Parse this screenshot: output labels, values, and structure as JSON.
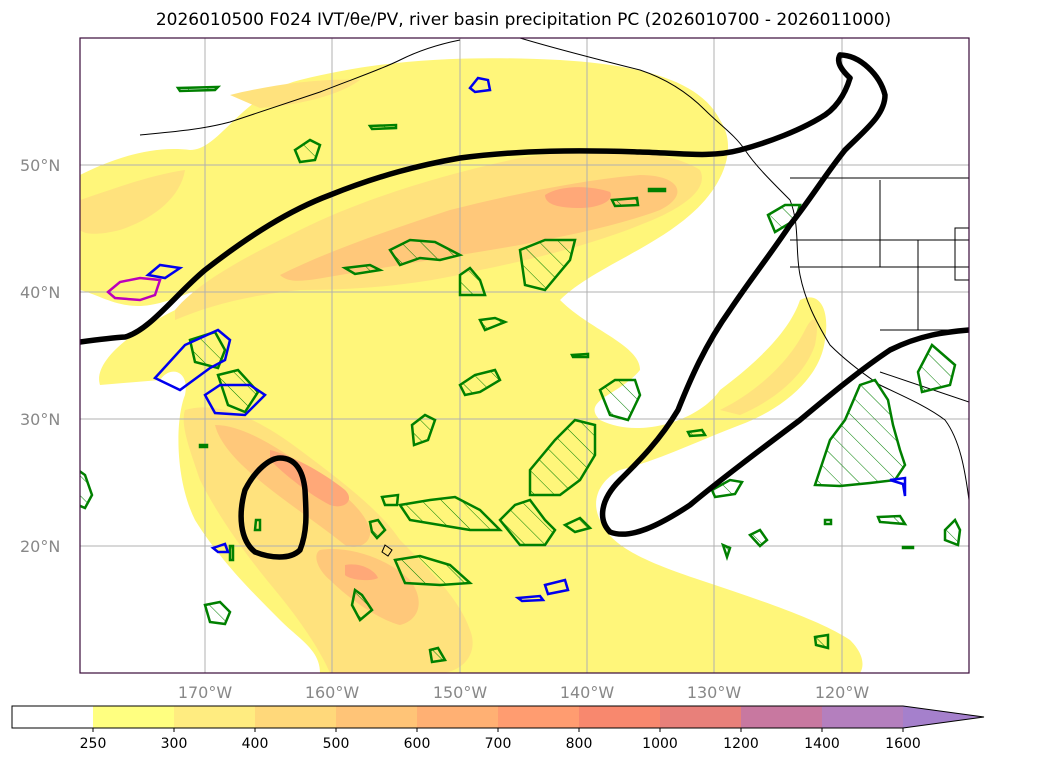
{
  "title": "2026010500 F024 IVT/θe/PV, river basin precipitation PC (2026010700 - 2026011000)",
  "lat_labels": [
    "50°N",
    "40°N",
    "30°N",
    "20°N"
  ],
  "lon_labels": [
    "170°W",
    "160°W",
    "150°W",
    "140°W",
    "130°W",
    "120°W"
  ],
  "colorbar": {
    "ticks": [
      "250",
      "300",
      "400",
      "500",
      "600",
      "700",
      "800",
      "1000",
      "1200",
      "1400",
      "1600"
    ],
    "colors": [
      "#ffffff",
      "#ffff80",
      "#ffec80",
      "#ffd87a",
      "#ffc477",
      "#ffb073",
      "#ff9c70",
      "#f8886e",
      "#e8807a",
      "#c878a0",
      "#b47fbe",
      "#a580cc"
    ]
  },
  "colors": {
    "ivt_light": "#fff67a",
    "ivt_mid": "#ffe27d",
    "ivt_orange": "#ffc87a",
    "ivt_peak": "#ffa878",
    "contour_black": "#000000",
    "precip_green": "#008000",
    "precip_blue": "#0000ee",
    "precip_magenta": "#bb00bb"
  }
}
